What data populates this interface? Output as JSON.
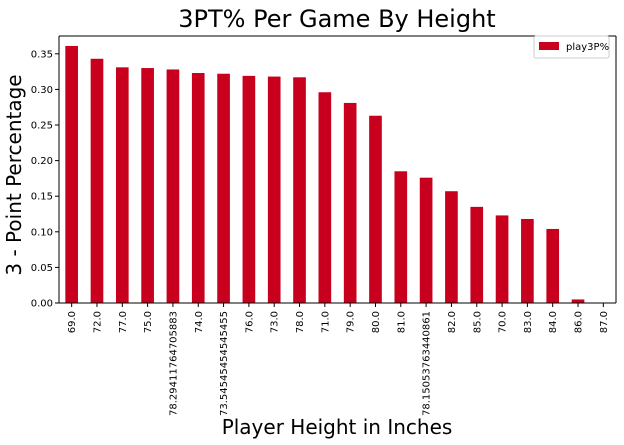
{
  "chart_data": {
    "type": "bar",
    "title": "3PT% Per Game By Height",
    "xlabel": "Player Height in Inches",
    "ylabel": "3 - Point Percentage",
    "ylim": [
      0,
      0.375
    ],
    "yticks": [
      "0.00",
      "0.05",
      "0.10",
      "0.15",
      "0.20",
      "0.25",
      "0.30",
      "0.35"
    ],
    "categories": [
      "69.0",
      "72.0",
      "77.0",
      "75.0",
      "78.29411764705883",
      "74.0",
      "73.54545454545455",
      "76.0",
      "73.0",
      "78.0",
      "71.0",
      "79.0",
      "80.0",
      "81.0",
      "78.15053763440861",
      "82.0",
      "85.0",
      "70.0",
      "83.0",
      "84.0",
      "86.0",
      "87.0"
    ],
    "series": [
      {
        "name": "play3P%",
        "color": "#c8001e",
        "values": [
          0.361,
          0.343,
          0.331,
          0.33,
          0.328,
          0.323,
          0.322,
          0.319,
          0.318,
          0.317,
          0.296,
          0.281,
          0.263,
          0.185,
          0.176,
          0.157,
          0.135,
          0.123,
          0.118,
          0.104,
          0.005,
          0.0
        ]
      }
    ],
    "legend": "top-right",
    "grid": false
  }
}
